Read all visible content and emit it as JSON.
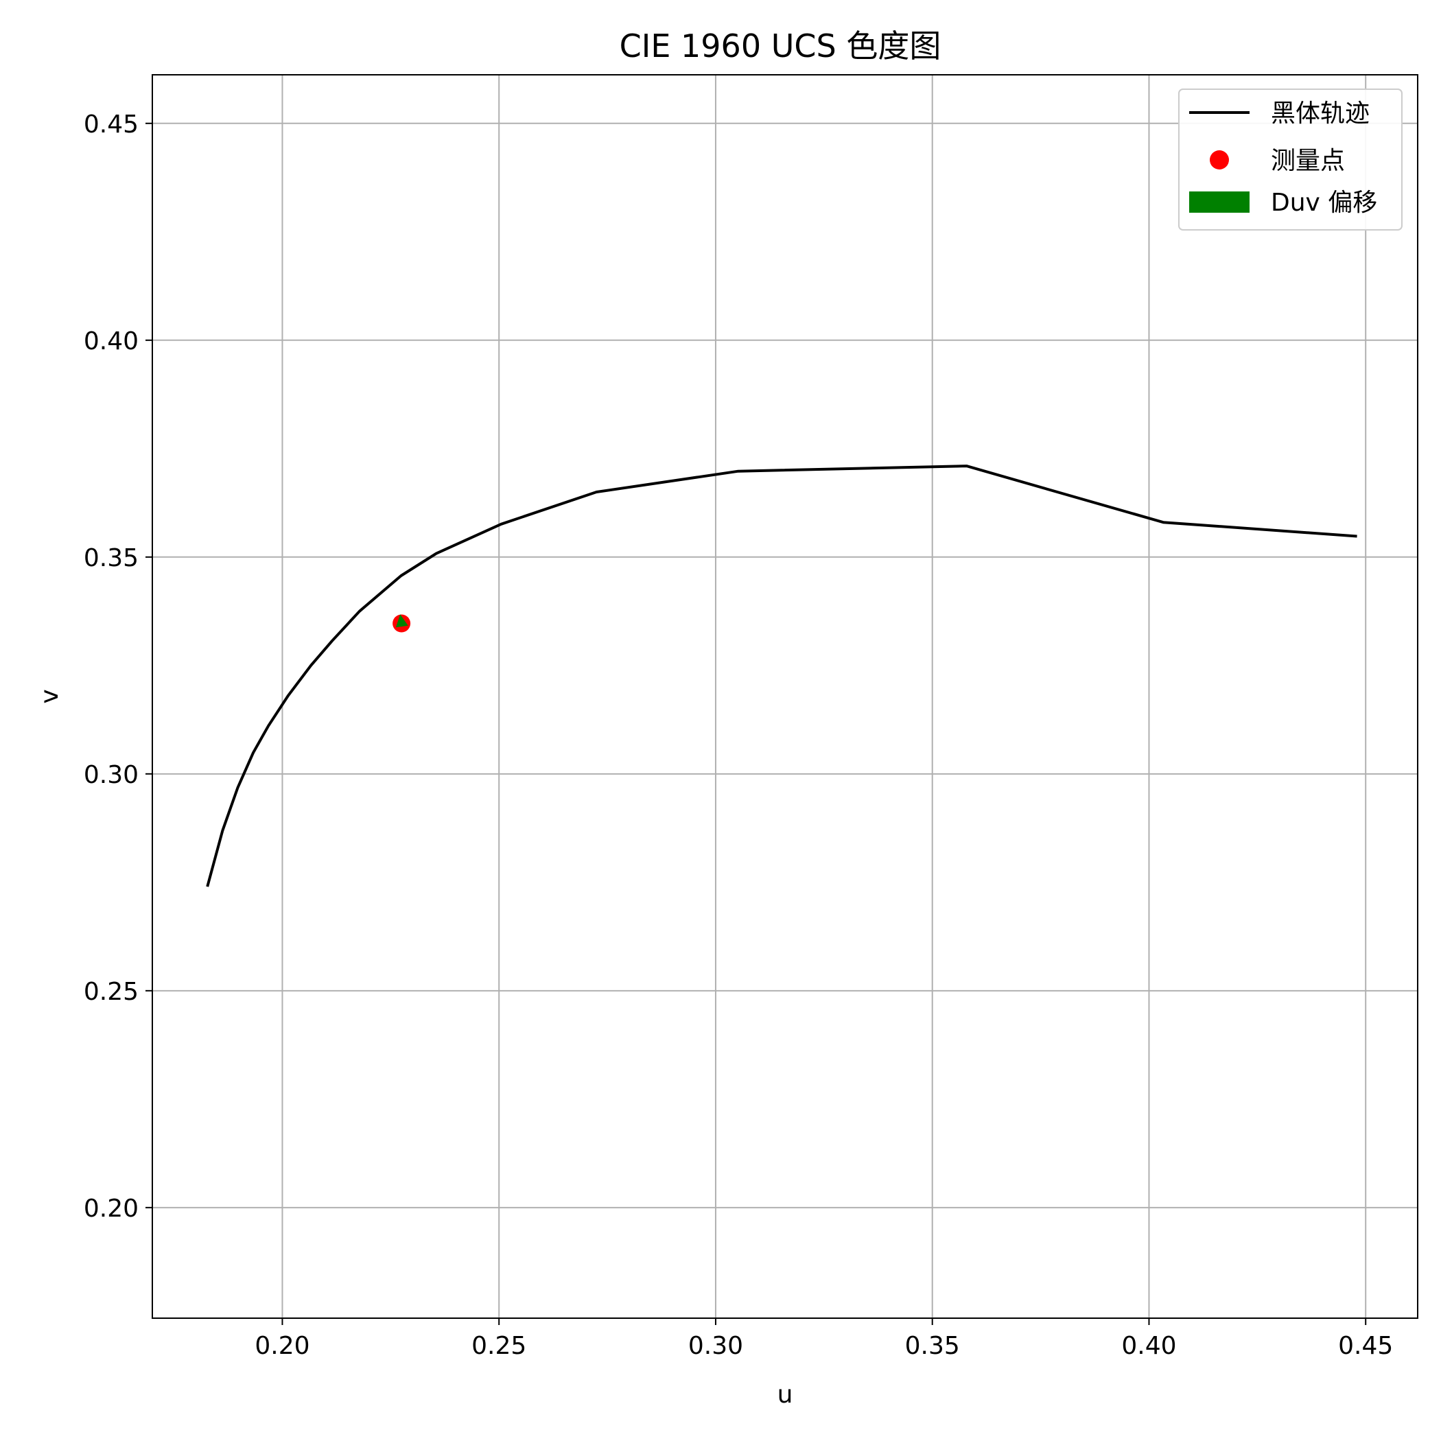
{
  "chart_data": {
    "type": "line",
    "title": "CIE 1960 UCS 色度图",
    "xlabel": "u",
    "ylabel": "v",
    "xlim": [
      0.17,
      0.462
    ],
    "ylim": [
      0.1745,
      0.4612
    ],
    "xticks": [
      0.2,
      0.25,
      0.3,
      0.35,
      0.4,
      0.45
    ],
    "xtick_labels": [
      "0.20",
      "0.25",
      "0.30",
      "0.35",
      "0.40",
      "0.45"
    ],
    "yticks": [
      0.2,
      0.25,
      0.3,
      0.35,
      0.4,
      0.45
    ],
    "ytick_labels": [
      "0.20",
      "0.25",
      "0.30",
      "0.35",
      "0.40",
      "0.45"
    ],
    "grid": true,
    "legend_position": "top-right",
    "series": [
      {
        "name": "黑体轨迹",
        "kind": "line",
        "color": "#000000",
        "x": [
          0.1827,
          0.1862,
          0.1897,
          0.1933,
          0.1968,
          0.2013,
          0.2066,
          0.2115,
          0.2178,
          0.2274,
          0.2355,
          0.2505,
          0.2725,
          0.3052,
          0.3579,
          0.4033,
          0.448
        ],
        "y": [
          0.274,
          0.2869,
          0.2968,
          0.3049,
          0.3111,
          0.318,
          0.325,
          0.3307,
          0.3375,
          0.3457,
          0.3508,
          0.3576,
          0.365,
          0.3698,
          0.371,
          0.358,
          0.3548
        ]
      },
      {
        "name": "测量点",
        "kind": "scatter",
        "color": "#ff0000",
        "x": [
          0.2275
        ],
        "y": [
          0.3347
        ]
      },
      {
        "name": "Duv 偏移",
        "kind": "arrow",
        "color": "#008000",
        "x": [
          0.2275,
          0.2272
        ],
        "y": [
          0.3347,
          0.3368
        ]
      }
    ]
  }
}
